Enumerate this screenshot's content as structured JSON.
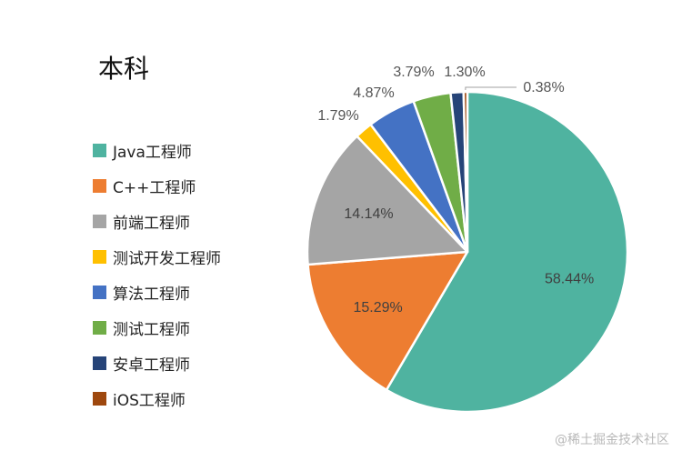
{
  "chart_data": {
    "type": "pie",
    "title": "本科",
    "categories": [
      "Java工程师",
      "C++工程师",
      "前端工程师",
      "测试开发工程师",
      "算法工程师",
      "测试工程师",
      "安卓工程师",
      "iOS工程师"
    ],
    "values": [
      58.44,
      15.29,
      14.14,
      1.79,
      4.87,
      3.79,
      1.3,
      0.38
    ],
    "data_labels": [
      "58.44%",
      "15.29%",
      "14.14%",
      "1.79%",
      "4.87%",
      "3.79%",
      "1.30%",
      "0.38%"
    ],
    "colors": [
      "#4fb3a0",
      "#ed7d31",
      "#a5a5a5",
      "#ffc000",
      "#4472c4",
      "#70ad47",
      "#264478",
      "#9e480e"
    ],
    "legend_position": "left",
    "start_direction": "top, clockwise"
  },
  "watermark": "@稀土掘金技术社区"
}
